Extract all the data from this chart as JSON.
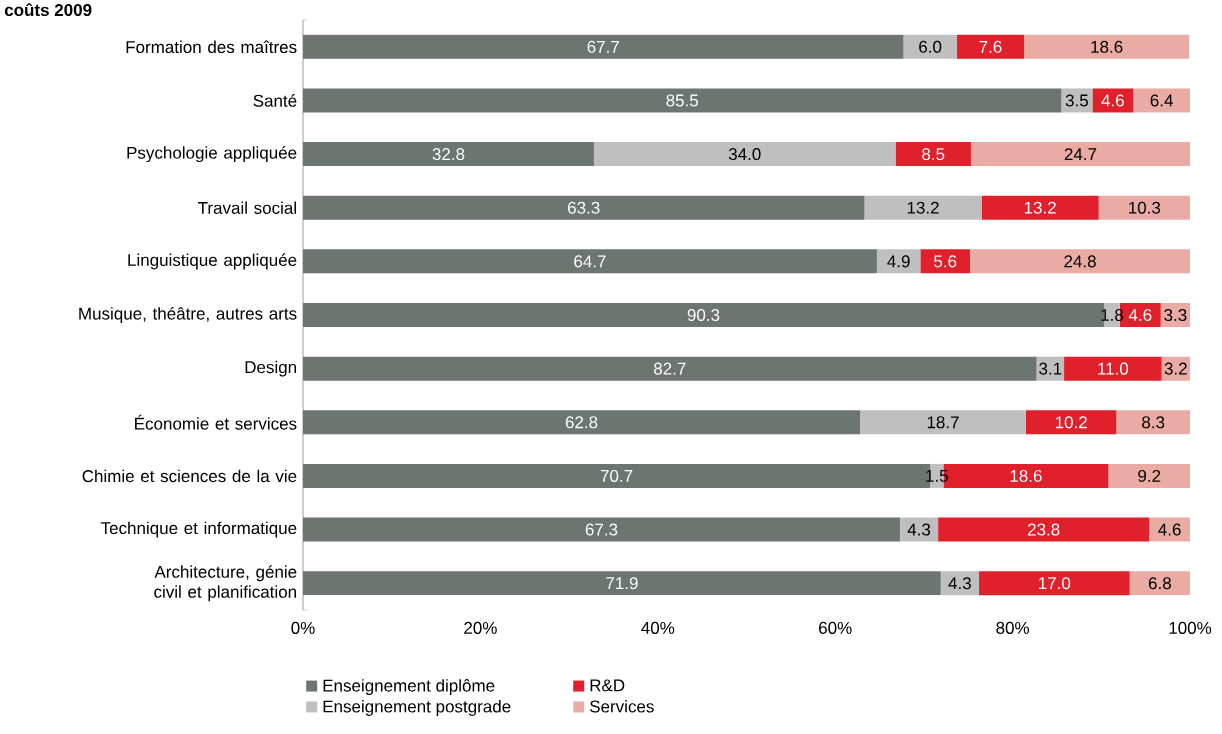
{
  "chart_data": {
    "type": "bar",
    "orientation": "horizontal",
    "stacked": true,
    "title": "coûts 2009",
    "categories": [
      "Formation des maîtres",
      "Santé",
      "Psychologie appliquée",
      "Travail social",
      "Linguistique appliquée",
      "Musique, théâtre, autres arts",
      "Design",
      "Économie et services",
      "Chimie et sciences de la vie",
      "Technique et informatique",
      "Architecture, génie civil et planification"
    ],
    "series": [
      {
        "name": "Enseignement diplôme",
        "color": "#6d7571",
        "values": [
          67.7,
          85.5,
          32.8,
          63.3,
          64.7,
          90.3,
          82.7,
          62.8,
          70.7,
          67.3,
          71.9
        ],
        "value_labels": [
          "67.7",
          "85.5",
          "32.8",
          "63.3",
          "64.7",
          "90.3",
          "82.7",
          "62.8",
          "70.7",
          "67.3",
          "71.9"
        ]
      },
      {
        "name": "Enseignement postgrade",
        "color": "#bfbfbf",
        "values": [
          6.0,
          3.5,
          34.0,
          13.2,
          4.9,
          1.8,
          3.1,
          18.7,
          1.5,
          4.3,
          4.3
        ],
        "value_labels": [
          "6.0",
          "3.5",
          "34.0",
          "13.2",
          "4.9",
          "1.8",
          "3.1",
          "18.7",
          "1.5",
          "4.3",
          "4.3"
        ]
      },
      {
        "name": "R&D",
        "color": "#e0202a",
        "values": [
          7.6,
          4.6,
          8.5,
          13.2,
          5.6,
          4.6,
          11.0,
          10.2,
          18.6,
          23.8,
          17.0
        ],
        "value_labels": [
          "7.6",
          "4.6",
          "8.5",
          "13.2",
          "5.6",
          "4.6",
          "11.0",
          "10.2",
          "18.6",
          "23.8",
          "17.0"
        ]
      },
      {
        "name": "Services",
        "color": "#eaaba4",
        "values": [
          18.6,
          6.4,
          24.7,
          10.3,
          24.8,
          3.3,
          3.2,
          8.3,
          9.2,
          4.6,
          6.8
        ],
        "value_labels": [
          "18.6",
          "6.4",
          "24.7",
          "10.3",
          "24.8",
          "3.3",
          "3.2",
          "8.3",
          "9.2",
          "4.6",
          "6.8"
        ]
      }
    ],
    "xlim": [
      0,
      100
    ],
    "xticks": [
      {
        "value": 0,
        "label": "0%"
      },
      {
        "value": 20,
        "label": "20%"
      },
      {
        "value": 40,
        "label": "40%"
      },
      {
        "value": 60,
        "label": "60%"
      },
      {
        "value": 80,
        "label": "80%"
      },
      {
        "value": 100,
        "label": "100%"
      }
    ],
    "grid": false,
    "legend": "bottom"
  }
}
